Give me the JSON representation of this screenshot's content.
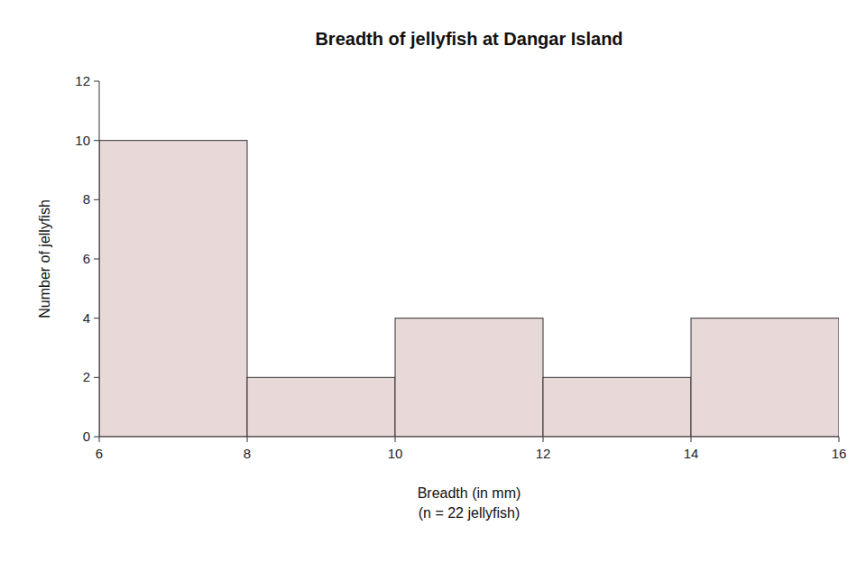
{
  "chart_data": {
    "type": "histogram",
    "title": "Breadth of jellyfish at Dangar Island",
    "xlabel": [
      "Breadth (in mm)",
      "(n = 22 jellyfish)"
    ],
    "ylabel": "Number of jellyfish",
    "bins": [
      6,
      8,
      10,
      12,
      14,
      16
    ],
    "values": [
      10,
      2,
      4,
      2,
      4
    ],
    "color": "#e8d8d8",
    "xlim": [
      6,
      16
    ],
    "ylim": [
      0,
      12
    ],
    "xticks": [
      6,
      8,
      10,
      12,
      14,
      16
    ],
    "yticks": [
      0,
      2,
      4,
      6,
      8,
      10,
      12
    ],
    "grid": false
  }
}
